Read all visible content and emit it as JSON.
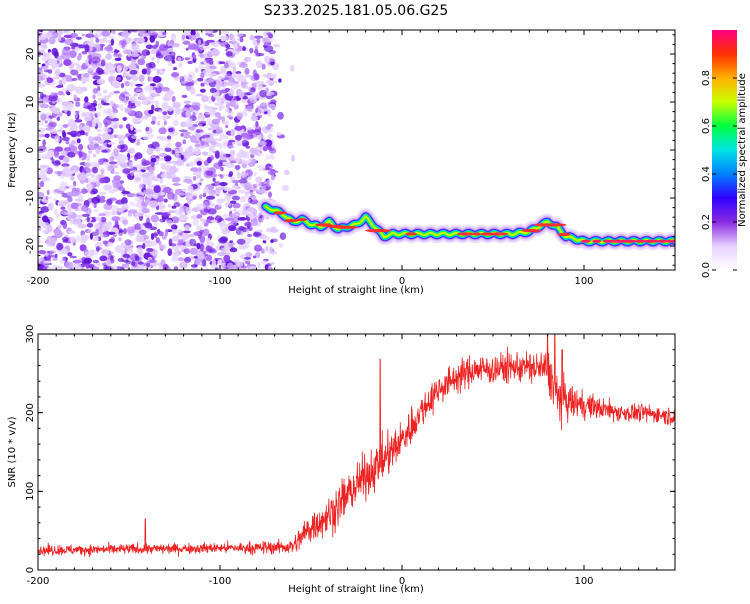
{
  "chart_data": [
    {
      "type": "heatmap",
      "title": "S233.2025.181.05.06.G25",
      "xlabel": "Height of straight line (km)",
      "ylabel": "Frequency (Hz)",
      "xlim": [
        -200,
        150
      ],
      "ylim": [
        -25,
        25
      ],
      "xticks": [
        -200,
        -100,
        0,
        100
      ],
      "yticks": [
        -20,
        -10,
        0,
        10,
        20
      ],
      "grid": false,
      "colorbar": {
        "label": "Normalized spectral amplitude",
        "range": [
          0,
          1
        ],
        "ticks": [
          0.0,
          0.2,
          0.4,
          0.6,
          0.8
        ],
        "colors": [
          "#ffffff",
          "#e8d0ff",
          "#8a2be2",
          "#3000ff",
          "#0080ff",
          "#00e5e5",
          "#00ff40",
          "#c8ff00",
          "#ffb000",
          "#ff3000",
          "#ff0080"
        ]
      },
      "noise_region_x": [
        -200,
        -70
      ],
      "ridge": {
        "x": [
          -75,
          -70,
          -65,
          -60,
          -55,
          -50,
          -45,
          -40,
          -35,
          -30,
          -25,
          -20,
          -15,
          -10,
          -5,
          0,
          10,
          20,
          30,
          40,
          50,
          60,
          70,
          75,
          80,
          85,
          90,
          95,
          100,
          110,
          120,
          130,
          140,
          150
        ],
        "y": [
          -12,
          -12.5,
          -13.5,
          -15,
          -14.5,
          -15.5,
          -16,
          -15,
          -16.5,
          -16,
          -15.5,
          -14,
          -16,
          -18,
          -17.5,
          -17.5,
          -17.5,
          -17.5,
          -17.5,
          -17.5,
          -17.5,
          -17.5,
          -17,
          -16,
          -15,
          -16,
          -18,
          -18.5,
          -19,
          -19,
          -19,
          -19,
          -19,
          -19
        ]
      }
    },
    {
      "type": "line",
      "xlabel": "Height of straight line (km)",
      "ylabel": "SNR (10 * v/v)",
      "xlim": [
        -200,
        150
      ],
      "ylim": [
        0,
        300
      ],
      "xticks": [
        -200,
        -100,
        0,
        100
      ],
      "yticks": [
        0,
        100,
        200,
        300
      ],
      "grid": false,
      "color": "#ee2222",
      "series": [
        {
          "trend_x": [
            -200,
            -100,
            -80,
            -60,
            -50,
            -40,
            -30,
            -20,
            -10,
            0,
            10,
            20,
            30,
            40,
            50,
            60,
            70,
            80,
            85,
            90,
            100,
            110,
            120,
            130,
            140,
            150
          ],
          "trend_y": [
            25,
            28,
            28,
            30,
            55,
            70,
            95,
            120,
            140,
            165,
            200,
            230,
            245,
            255,
            255,
            258,
            258,
            255,
            220,
            215,
            210,
            205,
            200,
            200,
            198,
            195
          ],
          "noise_amplitude": [
            12,
            12,
            14,
            18,
            40,
            45,
            50,
            50,
            50,
            45,
            40,
            35,
            35,
            35,
            35,
            35,
            35,
            45,
            60,
            45,
            30,
            25,
            22,
            20,
            20,
            20
          ],
          "spikes": [
            {
              "x": -141,
              "y": 65
            },
            {
              "x": -12,
              "y": 268
            },
            {
              "x": 80,
              "y": 300
            },
            {
              "x": 84,
              "y": 300
            },
            {
              "x": 88,
              "y": 280
            }
          ]
        }
      ]
    }
  ]
}
